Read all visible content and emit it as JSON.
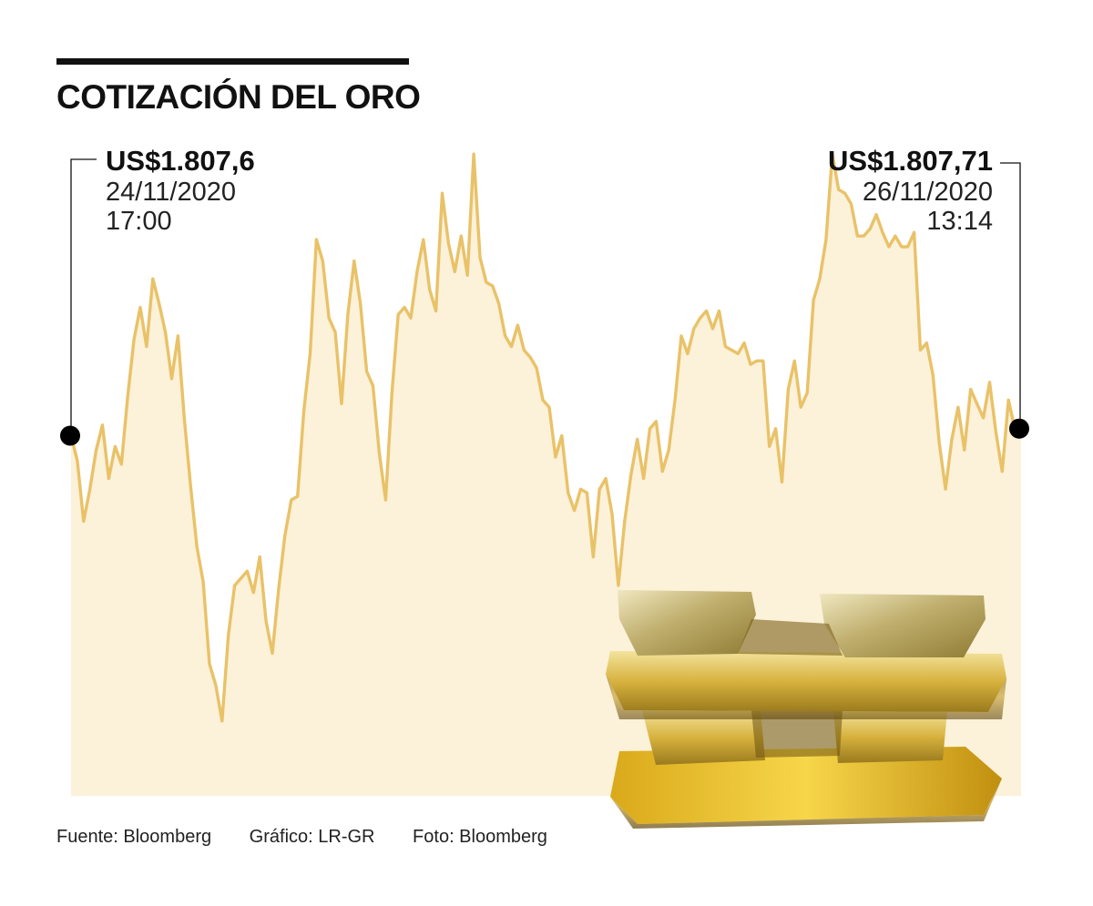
{
  "header": {
    "title": "COTIZACIÓN DEL ORO"
  },
  "annotations": {
    "start": {
      "price": "US$1.807,6",
      "date": "24/11/2020",
      "time": "17:00"
    },
    "end": {
      "price": "US$1.807,71",
      "date": "26/11/2020",
      "time": "13:14"
    }
  },
  "footer": {
    "source": "Fuente: Bloomberg",
    "graphic": "Gráfico: LR-GR",
    "photo": "Foto: Bloomberg"
  },
  "colors": {
    "line": "#E9C268",
    "area": "#FCF1D9",
    "marker": "#000000",
    "text": "#111111"
  },
  "icons": {
    "photo": "gold-bars-photo"
  },
  "chart_data": {
    "type": "line",
    "title": "COTIZACIÓN DEL ORO",
    "xlabel": "",
    "ylabel": "",
    "grid": false,
    "legend": "none",
    "x_start": "24/11/2020 17:00",
    "x_end": "26/11/2020 13:14",
    "ylim": [
      1797.5,
      1816.5
    ],
    "series": [
      {
        "values": [
          1807.6,
          1806.9,
          1805.2,
          1806.1,
          1807.2,
          1807.9,
          1806.4,
          1807.3,
          1806.8,
          1808.7,
          1810.3,
          1811.2,
          1810.1,
          1812.0,
          1811.3,
          1810.5,
          1809.2,
          1810.4,
          1808.1,
          1806.2,
          1804.5,
          1803.5,
          1801.2,
          1800.6,
          1799.6,
          1802.0,
          1803.4,
          1803.6,
          1803.8,
          1803.2,
          1804.2,
          1802.4,
          1801.5,
          1803.3,
          1804.8,
          1805.8,
          1805.9,
          1808.3,
          1809.9,
          1813.1,
          1812.5,
          1810.9,
          1810.5,
          1808.5,
          1811.0,
          1812.5,
          1811.3,
          1809.4,
          1809.0,
          1807.1,
          1805.8,
          1808.8,
          1811.0,
          1811.2,
          1810.9,
          1812.2,
          1813.1,
          1811.7,
          1811.1,
          1814.4,
          1813.0,
          1812.2,
          1813.2,
          1812.1,
          1815.5,
          1812.6,
          1811.9,
          1811.8,
          1811.3,
          1810.4,
          1810.1,
          1810.7,
          1810.0,
          1809.8,
          1809.5,
          1808.6,
          1808.4,
          1807.0,
          1807.6,
          1806.0,
          1805.5,
          1806.1,
          1806.0,
          1804.2,
          1806.1,
          1806.4,
          1805.4,
          1803.4,
          1805.2,
          1806.5,
          1807.5,
          1806.4,
          1807.8,
          1808.0,
          1806.6,
          1807.2,
          1808.6,
          1810.4,
          1809.9,
          1810.6,
          1810.9,
          1811.1,
          1810.6,
          1811.1,
          1810.1,
          1810.0,
          1809.9,
          1810.2,
          1809.6,
          1809.7,
          1809.7,
          1807.3,
          1807.8,
          1806.3,
          1808.9,
          1809.7,
          1808.4,
          1808.8,
          1811.4,
          1812.0,
          1813.1,
          1815.5,
          1814.5,
          1814.4,
          1814.1,
          1813.2,
          1813.2,
          1813.4,
          1813.8,
          1813.3,
          1812.9,
          1813.2,
          1812.9,
          1812.9,
          1813.3,
          1810.0,
          1810.2,
          1809.3,
          1807.4,
          1806.1,
          1807.5,
          1808.4,
          1807.2,
          1808.9,
          1808.5,
          1808.1,
          1809.1,
          1807.7,
          1806.6,
          1808.6,
          1807.8,
          1807.8
        ]
      }
    ]
  }
}
